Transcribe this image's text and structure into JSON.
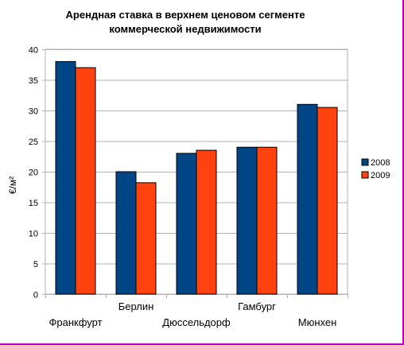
{
  "chart_data": {
    "type": "bar",
    "title_lines": [
      "Арендная ставка в верхнем ценовом сегменте",
      "коммерческой недвижимости"
    ],
    "ylabel": "€/м²",
    "ylim": [
      0,
      40
    ],
    "yticks": [
      0,
      5,
      10,
      15,
      20,
      25,
      30,
      35,
      40
    ],
    "categories": [
      "Франкфурт",
      "Берлин",
      "Дюссельдорф",
      "Гамбург",
      "Мюнхен"
    ],
    "series": [
      {
        "name": "2008",
        "color": "#004586",
        "values": [
          38,
          20,
          23,
          24,
          31
        ]
      },
      {
        "name": "2009",
        "color": "#ff420e",
        "values": [
          37,
          18.2,
          23.5,
          24,
          30.5
        ]
      }
    ],
    "grid": true,
    "legend_position": "right"
  }
}
